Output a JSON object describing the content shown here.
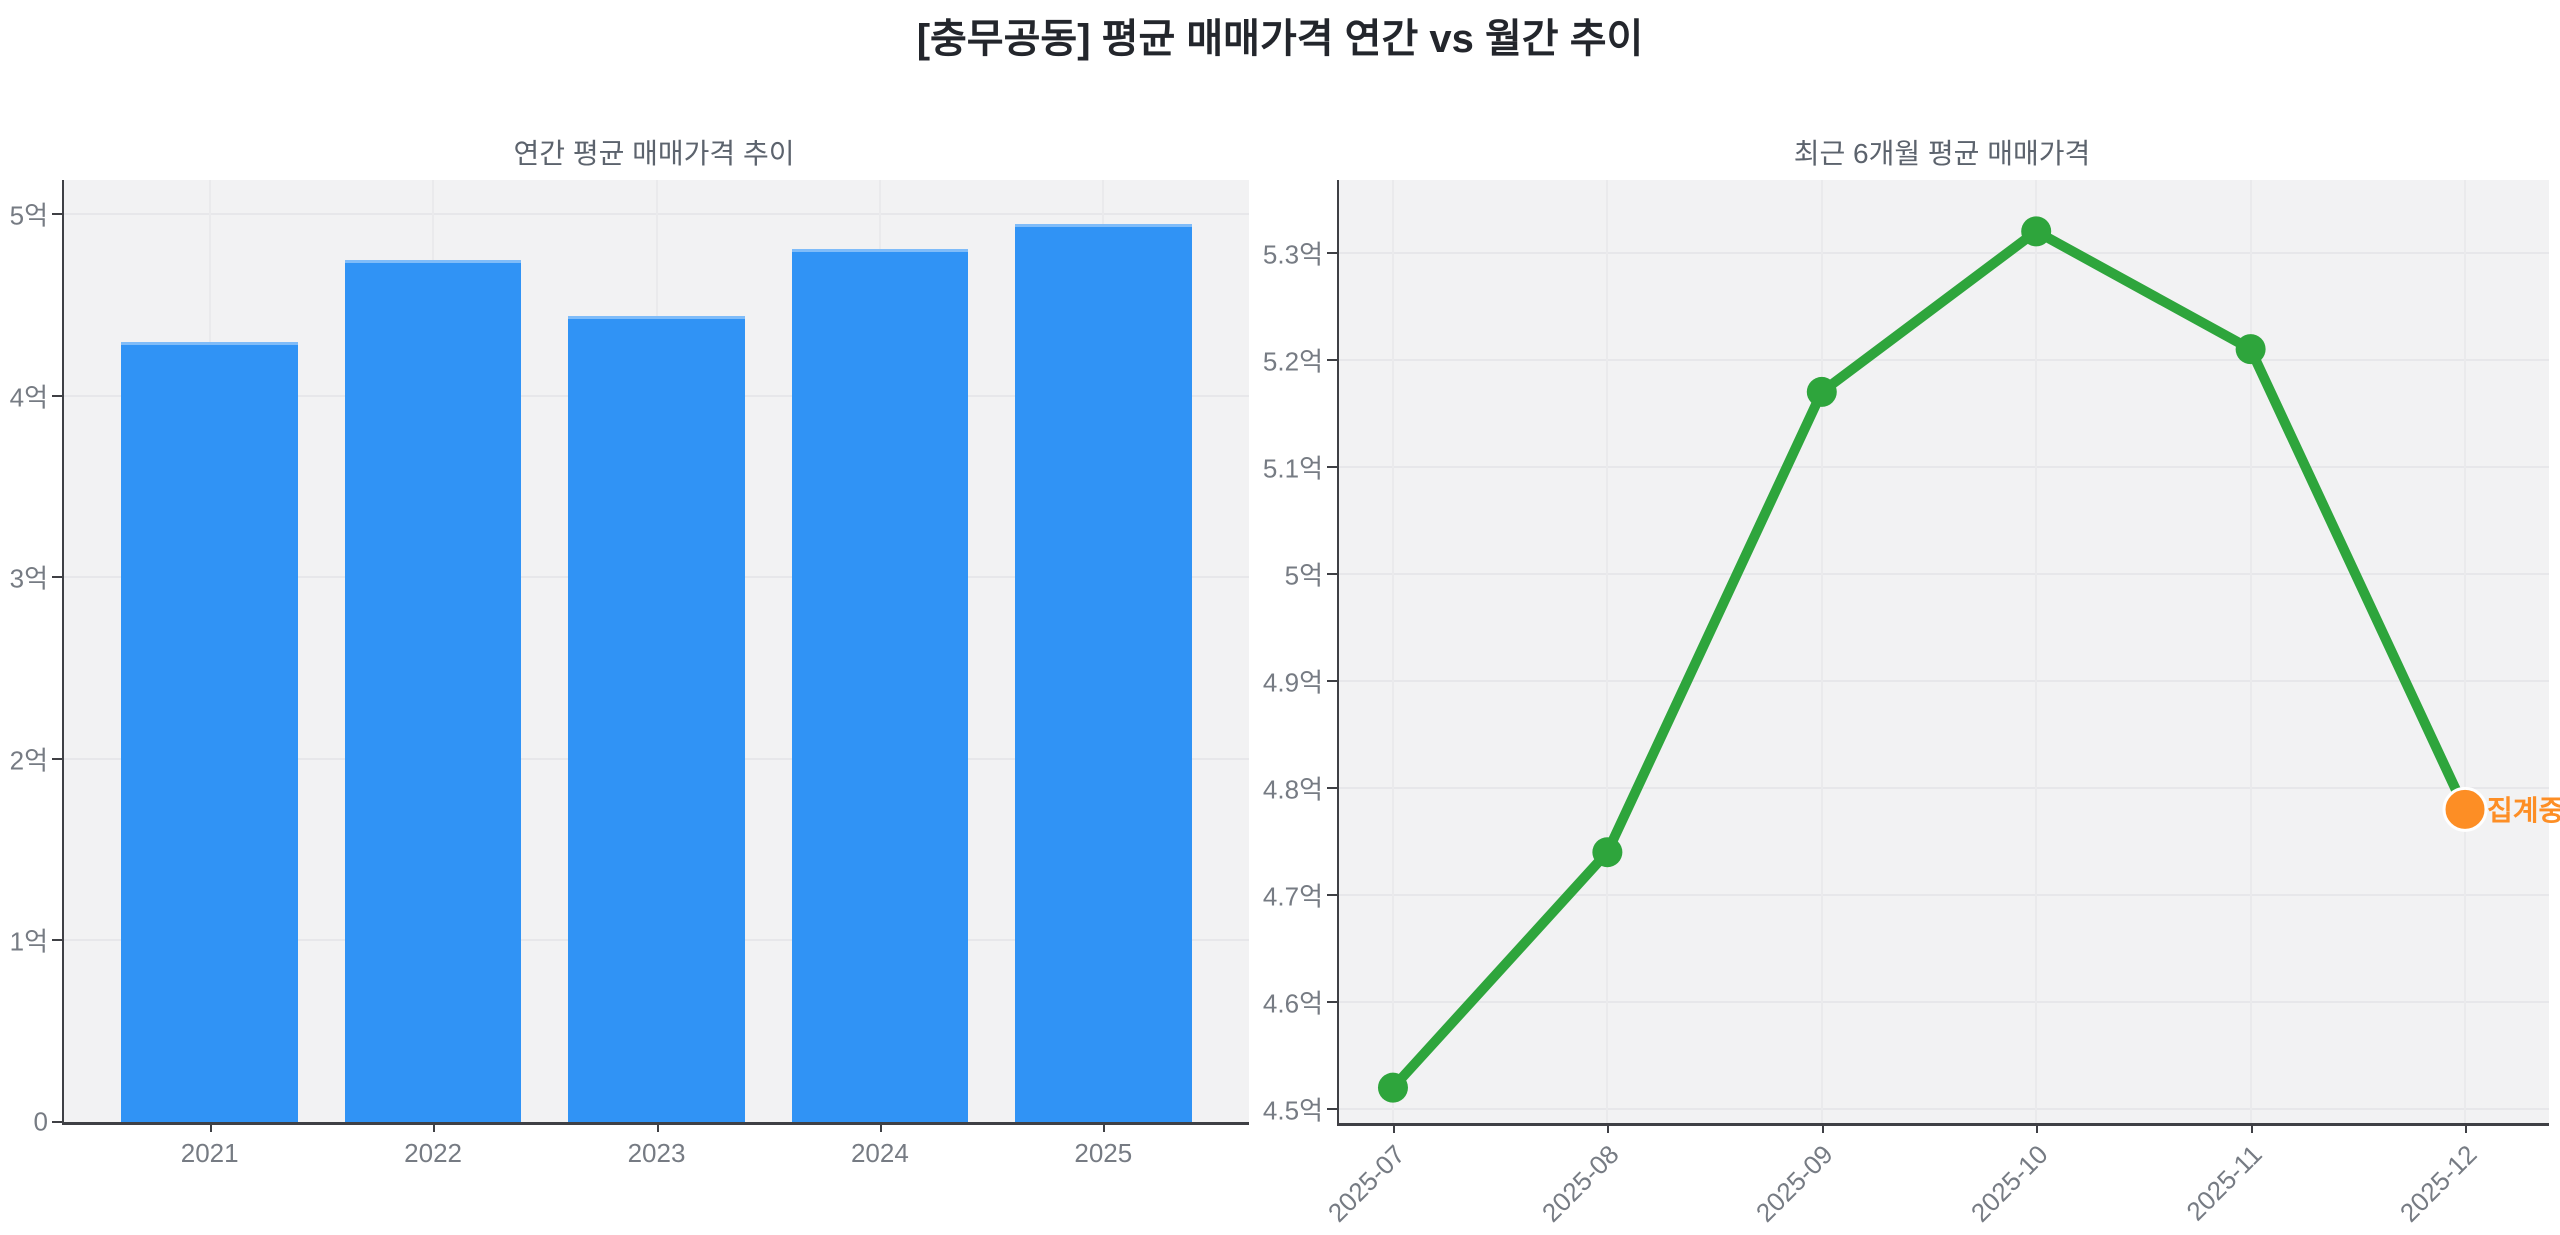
{
  "main_title": "[충무공동] 평균 매매가격 연간 vs 월간 추이",
  "colors": {
    "bar_fill": "#3093f5",
    "bar_edge": "#7fbcf9",
    "line_green": "#2ea53c",
    "estimate_orange": "#fd8e25",
    "plot_background": "#f2f2f3",
    "gridline": "#e7e7ea",
    "axis_line": "#3f4045",
    "tick_label": "#767b83",
    "subplot_title": "#5c636d",
    "main_title": "#23262c"
  },
  "chart_data": [
    {
      "type": "bar",
      "title": "연간 평균 매매가격 추이",
      "categories": [
        "2021",
        "2022",
        "2023",
        "2024",
        "2025"
      ],
      "values": [
        4.28,
        4.73,
        4.42,
        4.79,
        4.93
      ],
      "unit": "억",
      "xlabel": "",
      "ylabel": "",
      "ylim": [
        0,
        5.19
      ],
      "yticks": [
        {
          "value": 0,
          "label": "0"
        },
        {
          "value": 1,
          "label": "1억"
        },
        {
          "value": 2,
          "label": "2억"
        },
        {
          "value": 3,
          "label": "3억"
        },
        {
          "value": 4,
          "label": "4억"
        },
        {
          "value": 5,
          "label": "5억"
        }
      ],
      "grid": true,
      "legend": "none"
    },
    {
      "type": "line",
      "title": "최근 6개월 평균 매매가격",
      "x": [
        "2025-07",
        "2025-08",
        "2025-09",
        "2025-10",
        "2025-11",
        "2025-12"
      ],
      "values": [
        4.52,
        4.74,
        5.17,
        5.32,
        5.21,
        4.78
      ],
      "unit": "억",
      "xlabel": "",
      "ylabel": "",
      "ylim": [
        4.487,
        5.368
      ],
      "yticks": [
        {
          "value": 4.5,
          "label": "4.5억"
        },
        {
          "value": 4.6,
          "label": "4.6억"
        },
        {
          "value": 4.7,
          "label": "4.7억"
        },
        {
          "value": 4.8,
          "label": "4.8억"
        },
        {
          "value": 4.9,
          "label": "4.9억"
        },
        {
          "value": 5.0,
          "label": "5억"
        },
        {
          "value": 5.1,
          "label": "5.1억"
        },
        {
          "value": 5.2,
          "label": "5.2억"
        },
        {
          "value": 5.3,
          "label": "5.3억"
        }
      ],
      "grid": true,
      "legend": "none",
      "last_point_highlight": true,
      "annotation": {
        "text": "집계중",
        "attached_to": "2025-12"
      }
    }
  ]
}
